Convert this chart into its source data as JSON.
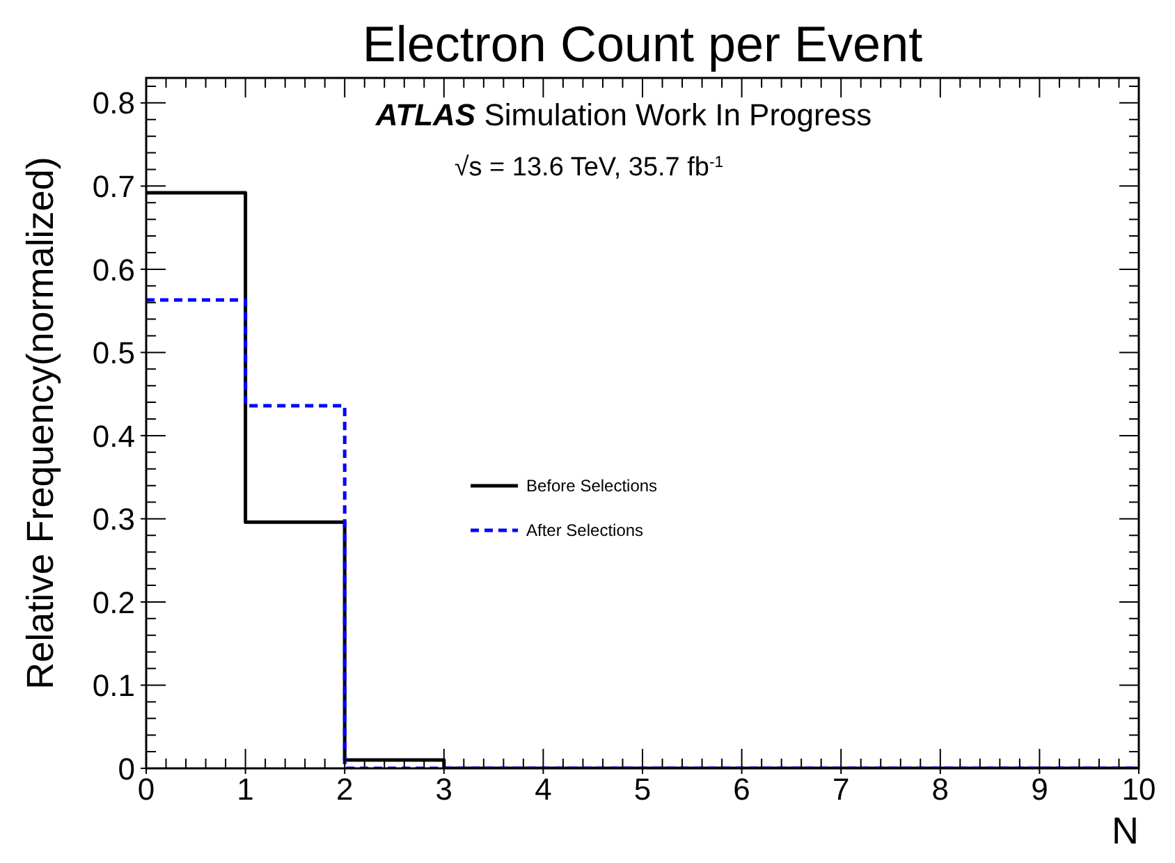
{
  "chart_data": {
    "type": "histogram",
    "title": "Electron Count per Event",
    "xlabel": "N",
    "ylabel": "Relative Frequency(normalized)",
    "annotations": [
      "ATLAS Simulation Work In Progress",
      "√s = 13.6 TeV, 35.7 fb$^{-1}$"
    ],
    "bins": [
      0,
      1,
      2,
      3,
      4,
      5,
      6,
      7,
      8,
      9,
      10
    ],
    "series": [
      {
        "name": "Before Selections",
        "color": "#000000",
        "line_style": "solid",
        "values": [
          0.692,
          0.296,
          0.01,
          0,
          0,
          0,
          0,
          0,
          0,
          0
        ]
      },
      {
        "name": "After Selections",
        "color": "#0000ff",
        "line_style": "dashed",
        "values": [
          0.563,
          0.436,
          0,
          0,
          0,
          0,
          0,
          0,
          0,
          0
        ]
      }
    ],
    "xlim": [
      0,
      10
    ],
    "xticks": [
      0,
      1,
      2,
      3,
      4,
      5,
      6,
      7,
      8,
      9,
      10
    ],
    "ylim": [
      0,
      0.83
    ],
    "yticks": [
      0,
      0.1,
      0.2,
      0.3,
      0.4,
      0.5,
      0.6,
      0.7,
      0.8
    ],
    "grid": false,
    "legend": "center"
  }
}
